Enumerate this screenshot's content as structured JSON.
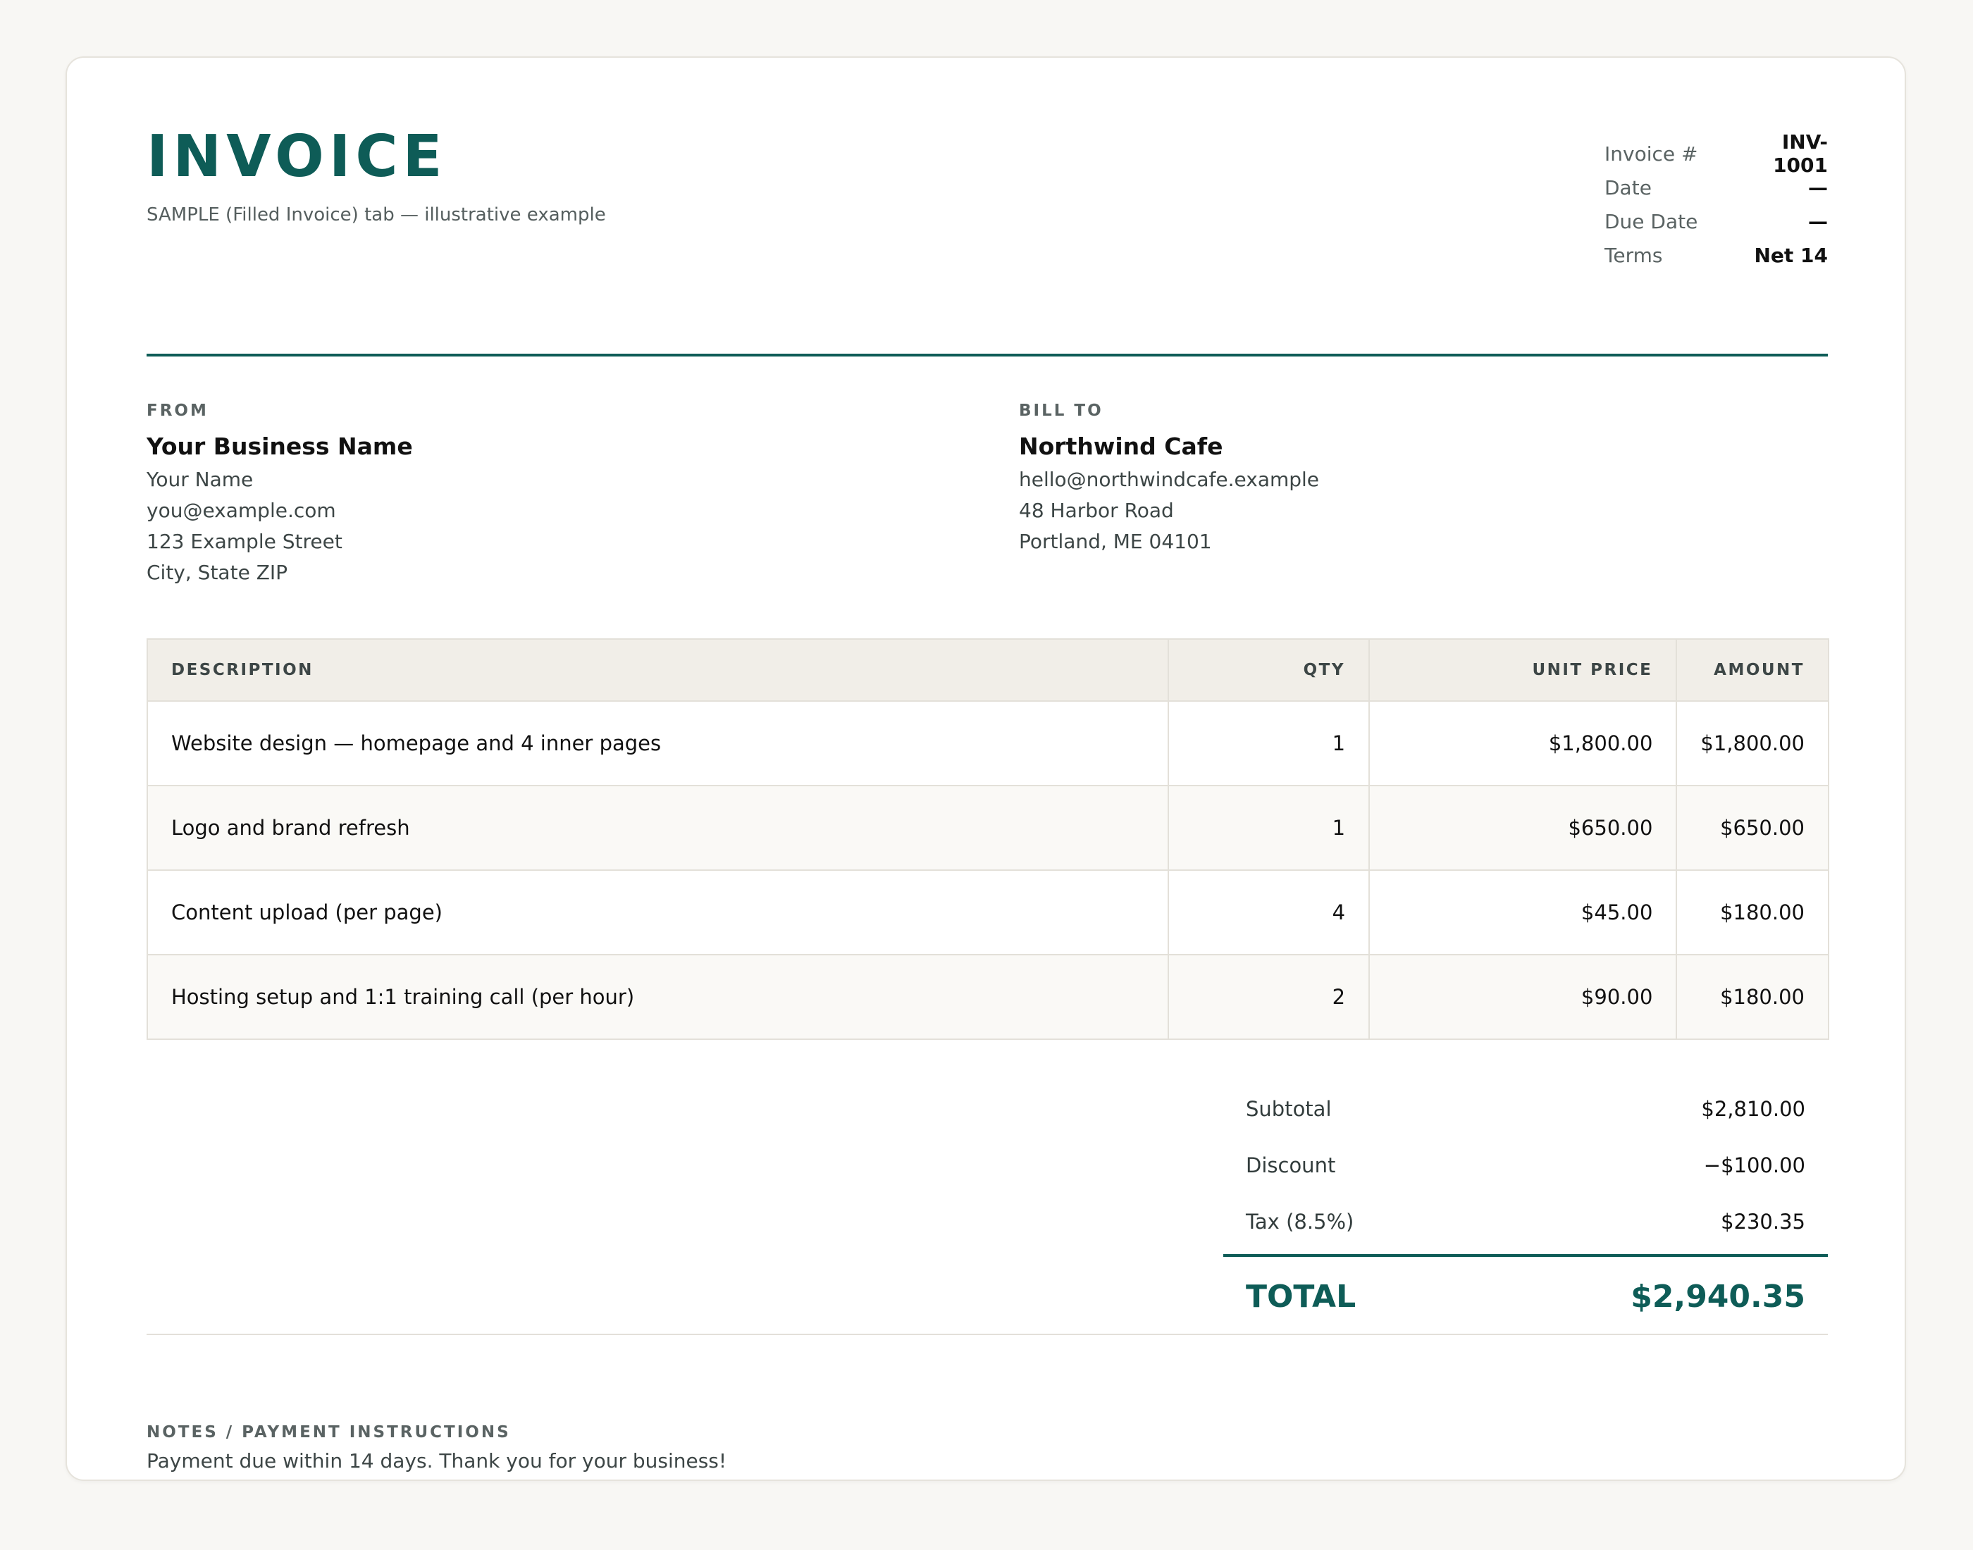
{
  "header": {
    "title": "INVOICE",
    "subtitle": "SAMPLE (Filled Invoice) tab — illustrative example"
  },
  "meta": [
    {
      "label": "Invoice #",
      "value": "INV-1001"
    },
    {
      "label": "Date",
      "value": "—"
    },
    {
      "label": "Due Date",
      "value": "—"
    },
    {
      "label": "Terms",
      "value": "Net 14"
    }
  ],
  "from": {
    "heading": "FROM",
    "name": "Your Business Name",
    "lines": [
      "Your Name",
      "you@example.com",
      "123 Example Street",
      "City, State ZIP"
    ]
  },
  "bill_to": {
    "heading": "BILL TO",
    "name": "Northwind Cafe",
    "lines": [
      "hello@northwindcafe.example",
      "48 Harbor Road",
      "Portland, ME 04101"
    ]
  },
  "table": {
    "headers": {
      "description": "DESCRIPTION",
      "qty": "QTY",
      "unit_price": "UNIT PRICE",
      "amount": "AMOUNT"
    },
    "rows": [
      {
        "description": "Website design — homepage and 4 inner pages",
        "qty": "1",
        "unit_price": "$1,800.00",
        "amount": "$1,800.00"
      },
      {
        "description": "Logo and brand refresh",
        "qty": "1",
        "unit_price": "$650.00",
        "amount": "$650.00"
      },
      {
        "description": "Content upload (per page)",
        "qty": "4",
        "unit_price": "$45.00",
        "amount": "$180.00"
      },
      {
        "description": "Hosting setup and 1:1 training call (per hour)",
        "qty": "2",
        "unit_price": "$90.00",
        "amount": "$180.00"
      }
    ]
  },
  "totals": {
    "subtotal_label": "Subtotal",
    "subtotal": "$2,810.00",
    "discount_label": "Discount",
    "discount": "−$100.00",
    "tax_label": "Tax (8.5%)",
    "tax": "$230.35",
    "total_label": "TOTAL",
    "total": "$2,940.35"
  },
  "notes": {
    "heading": "NOTES / PAYMENT INSTRUCTIONS",
    "text": "Payment due within 14 days. Thank you for your business!"
  },
  "colors": {
    "accent": "#0e5c57",
    "page_bg": "#f8f7f4",
    "table_header_bg": "#f1eee8"
  }
}
